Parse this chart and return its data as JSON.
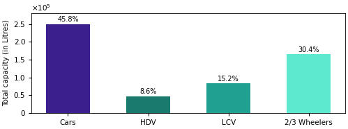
{
  "categories": [
    "Cars",
    "HDV",
    "LCV",
    "2/3 Wheelers"
  ],
  "values": [
    250000,
    47000,
    83000,
    166000
  ],
  "percentages": [
    "45.8%",
    "8.6%",
    "15.2%",
    "30.4%"
  ],
  "bar_colors": [
    "#3b1f8c",
    "#1a7a6e",
    "#20a090",
    "#5de8d0"
  ],
  "ylabel": "Total capacity (in Litres)",
  "ylim": [
    0,
    280000
  ],
  "yticks": [
    0,
    50000,
    100000,
    150000,
    200000,
    250000
  ],
  "background_color": "#ffffff",
  "label_fontsize": 7.0,
  "tick_fontsize": 7.5,
  "ylabel_fontsize": 7.5
}
